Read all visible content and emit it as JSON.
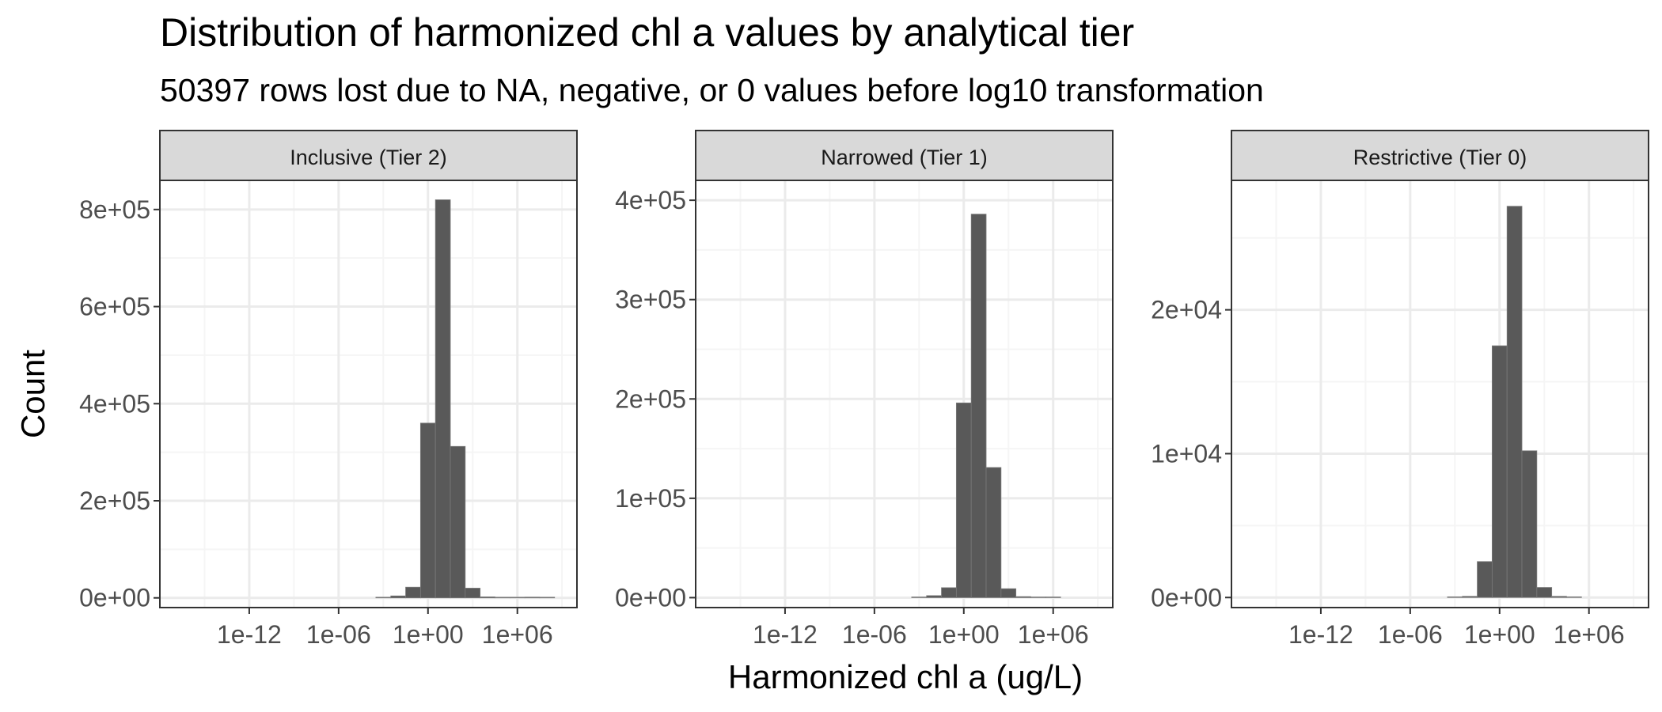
{
  "chart_data": {
    "type": "bar",
    "title": "Distribution of harmonized chl a values by analytical tier",
    "subtitle": "50397 rows lost due to NA, negative, or 0 values before log10 transformation",
    "xlabel": "Harmonized chl a (ug/L)",
    "ylabel": "Count",
    "x_scale": "log10",
    "x_ticks": [
      1e-12,
      1e-06,
      1,
      1000000.0
    ],
    "x_tick_labels": [
      "1e-12",
      "1e-06",
      "1e+00",
      "1e+06"
    ],
    "xlim": [
      1e-18,
      10000000000.0
    ],
    "grid": true,
    "bin_width_log10": 1,
    "bin_centers": [
      0.001,
      0.01,
      0.1,
      1,
      10.0,
      100.0,
      1000.0,
      10000.0,
      100000.0,
      1000000.0,
      10000000.0,
      100000000.0
    ],
    "panels": [
      {
        "strip": "Inclusive (Tier 2)",
        "ylim": [
          -20000,
          860000
        ],
        "y_ticks": [
          0,
          200000,
          400000,
          600000,
          800000
        ],
        "y_tick_labels": [
          "0e+00",
          "2e+05",
          "4e+05",
          "6e+05",
          "8e+05"
        ],
        "values": [
          1000,
          4000,
          22000,
          360000,
          820000,
          312000,
          20000,
          2000,
          800,
          500,
          1500,
          500
        ]
      },
      {
        "strip": "Narrowed (Tier 1)",
        "ylim": [
          -10000,
          420000
        ],
        "y_ticks": [
          0,
          100000,
          200000,
          300000,
          400000
        ],
        "y_tick_labels": [
          "0e+00",
          "1e+05",
          "2e+05",
          "3e+05",
          "4e+05"
        ],
        "values": [
          500,
          2000,
          10000,
          196000,
          386000,
          131000,
          9000,
          1000,
          300,
          100,
          0,
          0
        ]
      },
      {
        "strip": "Restrictive (Tier 0)",
        "ylim": [
          -700,
          29000
        ],
        "y_ticks": [
          0,
          10000,
          20000
        ],
        "y_tick_labels": [
          "0e+00",
          "1e+04",
          "2e+04"
        ],
        "values": [
          20,
          80,
          2500,
          17500,
          27200,
          10200,
          700,
          80,
          20,
          0,
          0,
          0
        ]
      }
    ]
  },
  "colors": {
    "bar_fill": "#595959",
    "bar_stroke": "#7a7a7a",
    "strip_fill": "#d9d9d9",
    "panel_border": "#333333",
    "grid_major": "#ebebeb",
    "grid_minor": "#f5f5f5",
    "tick_text": "#4d4d4d"
  }
}
